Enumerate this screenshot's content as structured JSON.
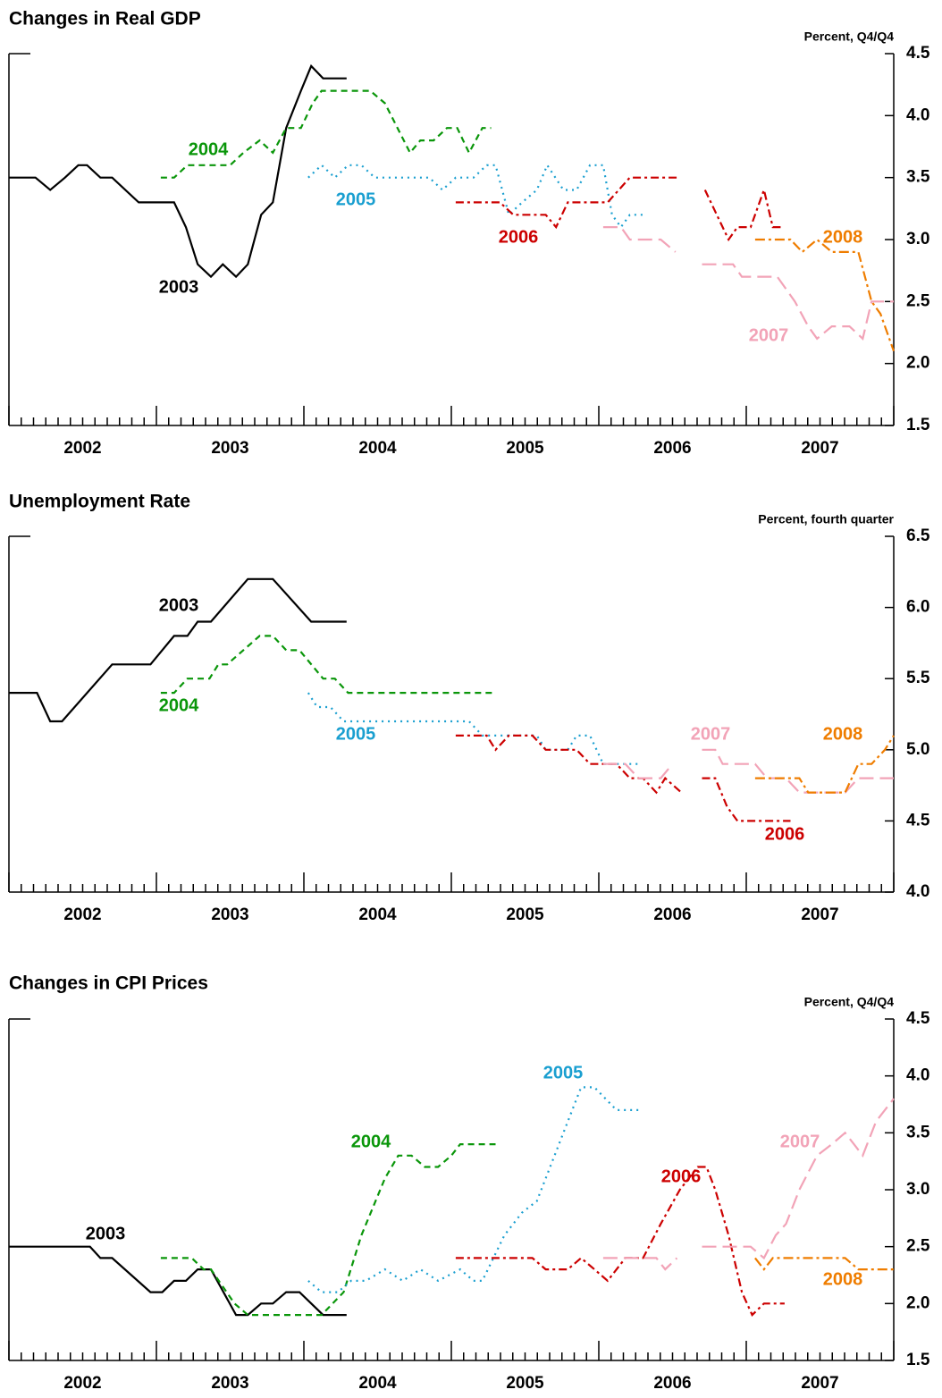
{
  "chart_data": [
    {
      "type": "line",
      "title": "Changes in Real GDP",
      "y_axis_label": "Percent, Q4/Q4",
      "xlim": [
        2002,
        2008
      ],
      "xticks": [
        {
          "value": 2002.5,
          "label": "2002"
        },
        {
          "value": 2003.5,
          "label": "2003"
        },
        {
          "value": 2004.5,
          "label": "2004"
        },
        {
          "value": 2005.5,
          "label": "2005"
        },
        {
          "value": 2006.5,
          "label": "2006"
        },
        {
          "value": 2007.5,
          "label": "2007"
        }
      ],
      "ylim": [
        1.5,
        4.5
      ],
      "yticks": [
        1.5,
        {
          "value": 2,
          "label": "2.0"
        },
        2.5,
        {
          "value": 3,
          "label": "3.0"
        },
        3.5,
        {
          "value": 4,
          "label": "4.0"
        },
        4.5
      ],
      "series": [
        {
          "name": "2003",
          "color": "#000000",
          "x": [
            2002.0,
            2002.18,
            2002.28,
            2002.38,
            2002.47,
            2002.53,
            2002.62,
            2002.7,
            2002.88,
            2003.12,
            2003.2,
            2003.28,
            2003.37,
            2003.45,
            2003.54,
            2003.62,
            2003.71,
            2003.79,
            2003.88,
            2003.98,
            2004.05,
            2004.13,
            2004.29
          ],
          "values": [
            3.5,
            3.5,
            3.4,
            3.5,
            3.6,
            3.6,
            3.5,
            3.5,
            3.3,
            3.3,
            3.1,
            2.8,
            2.7,
            2.8,
            2.7,
            2.8,
            3.2,
            3.3,
            3.9,
            4.2,
            4.4,
            4.3,
            4.3
          ]
        },
        {
          "name": "2004",
          "color": "#0a960a",
          "x": [
            2003.03,
            2003.12,
            2003.21,
            2003.5,
            2003.59,
            2003.7,
            2003.79,
            2003.88,
            2003.98,
            2004.06,
            2004.12,
            2004.45,
            2004.55,
            2004.72,
            2004.79,
            2004.88,
            2004.97,
            2005.04,
            2005.12,
            2005.21,
            2005.27
          ],
          "values": [
            3.5,
            3.5,
            3.6,
            3.6,
            3.7,
            3.8,
            3.7,
            3.9,
            3.9,
            4.1,
            4.2,
            4.2,
            4.1,
            3.7,
            3.8,
            3.8,
            3.9,
            3.9,
            3.7,
            3.9,
            3.9
          ]
        },
        {
          "name": "2005",
          "color": "#1a9fd0",
          "x": [
            2004.03,
            2004.12,
            2004.21,
            2004.3,
            2004.39,
            2004.48,
            2004.85,
            2004.94,
            2005.03,
            2005.15,
            2005.24,
            2005.3,
            2005.39,
            2005.48,
            2005.58,
            2005.65,
            2005.76,
            2005.85,
            2005.94,
            2006.03,
            2006.09,
            2006.15,
            2006.21,
            2006.3
          ],
          "values": [
            3.5,
            3.6,
            3.5,
            3.6,
            3.6,
            3.5,
            3.5,
            3.4,
            3.5,
            3.5,
            3.6,
            3.6,
            3.2,
            3.3,
            3.4,
            3.6,
            3.4,
            3.4,
            3.6,
            3.6,
            3.2,
            3.1,
            3.2,
            3.2
          ]
        },
        {
          "name": "2006",
          "color": "#cc0000",
          "x": [
            2005.03,
            2005.33,
            2005.42,
            2005.64,
            2005.71,
            2005.79,
            2006.06,
            2006.21,
            2006.55,
            2006.64,
            2006.72,
            2006.8,
            2006.88,
            2006.94,
            2007.03,
            2007.12,
            2007.18,
            2007.24
          ],
          "values": [
            3.3,
            3.3,
            3.2,
            3.2,
            3.1,
            3.3,
            3.3,
            3.5,
            3.5,
            null,
            3.4,
            3.2,
            3.0,
            3.1,
            3.1,
            3.4,
            3.1,
            3.1
          ]
        },
        {
          "name": "2007",
          "color": "#f2a3b7",
          "x": [
            2006.03,
            2006.15,
            2006.21,
            2006.42,
            2006.52,
            2006.6,
            2006.7,
            2006.91,
            2006.97,
            2007.21,
            2007.33,
            2007.42,
            2007.48,
            2007.58,
            2007.7,
            2007.79,
            2007.85,
            2008.0
          ],
          "values": [
            3.1,
            3.1,
            3.0,
            3.0,
            2.9,
            null,
            2.8,
            2.8,
            2.7,
            2.7,
            2.5,
            2.3,
            2.2,
            2.3,
            2.3,
            2.2,
            2.5,
            2.5
          ]
        },
        {
          "name": "2008",
          "color": "#ef7d00",
          "x": [
            2007.06,
            2007.3,
            2007.38,
            2007.48,
            2007.58,
            2007.76,
            2007.85,
            2007.91,
            2008.0
          ],
          "values": [
            3.0,
            3.0,
            2.9,
            3.0,
            2.9,
            2.9,
            2.5,
            2.4,
            2.1
          ]
        }
      ]
    },
    {
      "type": "line",
      "title": "Unemployment Rate",
      "y_axis_label": "Percent, fourth quarter",
      "xlim": [
        2002,
        2008
      ],
      "xticks": [
        {
          "value": 2002.5,
          "label": "2002"
        },
        {
          "value": 2003.5,
          "label": "2003"
        },
        {
          "value": 2004.5,
          "label": "2004"
        },
        {
          "value": 2005.5,
          "label": "2005"
        },
        {
          "value": 2006.5,
          "label": "2006"
        },
        {
          "value": 2007.5,
          "label": "2007"
        }
      ],
      "ylim": [
        4.0,
        6.5
      ],
      "yticks": [
        {
          "value": 4,
          "label": "4.0"
        },
        4.5,
        {
          "value": 5,
          "label": "5.0"
        },
        5.5,
        {
          "value": 6,
          "label": "6.0"
        },
        6.5
      ],
      "series": [
        {
          "name": "2003",
          "color": "#000000",
          "x": [
            2002.0,
            2002.19,
            2002.28,
            2002.36,
            2002.7,
            2002.96,
            2003.12,
            2003.21,
            2003.28,
            2003.37,
            2003.62,
            2003.79,
            2004.05,
            2004.29
          ],
          "values": [
            5.4,
            5.4,
            5.2,
            5.2,
            5.6,
            5.6,
            5.8,
            5.8,
            5.9,
            5.9,
            6.2,
            6.2,
            5.9,
            5.9
          ]
        },
        {
          "name": "2004",
          "color": "#0a960a",
          "x": [
            2003.03,
            2003.12,
            2003.21,
            2003.36,
            2003.42,
            2003.48,
            2003.7,
            2003.79,
            2003.88,
            2003.97,
            2004.13,
            2004.21,
            2004.3,
            2005.3
          ],
          "values": [
            5.4,
            5.4,
            5.5,
            5.5,
            5.6,
            5.6,
            5.8,
            5.8,
            5.7,
            5.7,
            5.5,
            5.5,
            5.4,
            5.4
          ]
        },
        {
          "name": "2005",
          "color": "#1a9fd0",
          "x": [
            2004.03,
            2004.09,
            2004.18,
            2004.27,
            2005.12,
            2005.21,
            2005.58,
            2005.64,
            2005.79,
            2005.85,
            2005.94,
            2006.03,
            2006.29
          ],
          "values": [
            5.4,
            5.3,
            5.3,
            5.2,
            5.2,
            5.1,
            5.1,
            5.0,
            5.0,
            5.1,
            5.1,
            4.9,
            4.9
          ]
        },
        {
          "name": "2006",
          "color": "#cc0000",
          "x": [
            2005.03,
            2005.24,
            2005.3,
            2005.39,
            2005.55,
            2005.64,
            2005.85,
            2005.94,
            2006.12,
            2006.21,
            2006.3,
            2006.39,
            2006.45,
            2006.56,
            2006.63,
            2006.7,
            2006.79,
            2006.87,
            2006.94,
            2007.3
          ],
          "values": [
            5.1,
            5.1,
            5.0,
            5.1,
            5.1,
            5.0,
            5.0,
            4.9,
            4.9,
            4.8,
            4.8,
            4.7,
            4.8,
            4.7,
            null,
            4.8,
            4.8,
            4.6,
            4.5,
            4.5
          ]
        },
        {
          "name": "2007",
          "color": "#f2a3b7",
          "x": [
            2006.03,
            2006.18,
            2006.27,
            2006.42,
            2006.5,
            2006.6,
            2006.7,
            2006.79,
            2006.84,
            2007.06,
            2007.14,
            2007.27,
            2007.36,
            2007.67,
            2007.76,
            2008.0
          ],
          "values": [
            4.9,
            4.9,
            4.8,
            4.8,
            4.9,
            null,
            5.0,
            5.0,
            4.9,
            4.9,
            4.8,
            4.8,
            4.7,
            4.7,
            4.8,
            4.8
          ]
        },
        {
          "name": "2008",
          "color": "#ef7d00",
          "x": [
            2007.06,
            2007.36,
            2007.42,
            2007.67,
            2007.76,
            2007.85,
            2007.94,
            2008.0
          ],
          "values": [
            4.8,
            4.8,
            4.7,
            4.7,
            4.9,
            4.9,
            5.0,
            5.1
          ]
        }
      ]
    },
    {
      "type": "line",
      "title": "Changes in CPI Prices",
      "y_axis_label": "Percent, Q4/Q4",
      "xlim": [
        2002,
        2008
      ],
      "xticks": [
        {
          "value": 2002.5,
          "label": "2002"
        },
        {
          "value": 2003.5,
          "label": "2003"
        },
        {
          "value": 2004.5,
          "label": "2004"
        },
        {
          "value": 2005.5,
          "label": "2005"
        },
        {
          "value": 2006.5,
          "label": "2006"
        },
        {
          "value": 2007.5,
          "label": "2007"
        }
      ],
      "ylim": [
        1.5,
        4.5
      ],
      "yticks": [
        1.5,
        {
          "value": 2,
          "label": "2.0"
        },
        2.5,
        {
          "value": 3,
          "label": "3.0"
        },
        3.5,
        {
          "value": 4,
          "label": "4.0"
        },
        4.5
      ],
      "series": [
        {
          "name": "2003",
          "color": "#000000",
          "x": [
            2002.0,
            2002.55,
            2002.62,
            2002.7,
            2002.96,
            2003.04,
            2003.12,
            2003.2,
            2003.28,
            2003.37,
            2003.54,
            2003.62,
            2003.71,
            2003.79,
            2003.88,
            2003.97,
            2004.13,
            2004.29
          ],
          "values": [
            2.5,
            2.5,
            2.4,
            2.4,
            2.1,
            2.1,
            2.2,
            2.2,
            2.3,
            2.3,
            1.9,
            1.9,
            2.0,
            2.0,
            2.1,
            2.1,
            1.9,
            1.9
          ]
        },
        {
          "name": "2004",
          "color": "#0a960a",
          "x": [
            2003.03,
            2003.24,
            2003.32,
            2003.37,
            2003.53,
            2003.62,
            2004.12,
            2004.27,
            2004.39,
            2004.55,
            2004.64,
            2004.73,
            2004.82,
            2004.91,
            2005.0,
            2005.06,
            2005.3
          ],
          "values": [
            2.4,
            2.4,
            2.3,
            2.3,
            2.0,
            1.9,
            1.9,
            2.1,
            2.6,
            3.1,
            3.3,
            3.3,
            3.2,
            3.2,
            3.3,
            3.4,
            3.4
          ]
        },
        {
          "name": "2005",
          "color": "#1a9fd0",
          "x": [
            2004.03,
            2004.12,
            2004.23,
            2004.32,
            2004.42,
            2004.55,
            2004.67,
            2004.79,
            2004.91,
            2005.06,
            2005.15,
            2005.21,
            2005.36,
            2005.48,
            2005.58,
            2005.76,
            2005.88,
            2005.97,
            2006.12,
            2006.27
          ],
          "values": [
            2.2,
            2.1,
            2.1,
            2.2,
            2.2,
            2.3,
            2.2,
            2.3,
            2.2,
            2.3,
            2.2,
            2.2,
            2.6,
            2.8,
            2.9,
            3.5,
            3.9,
            3.9,
            3.7,
            3.7
          ]
        },
        {
          "name": "2006",
          "color": "#cc0000",
          "x": [
            2005.03,
            2005.55,
            2005.64,
            2005.79,
            2005.88,
            2005.97,
            2006.06,
            2006.18,
            2006.3,
            2006.42,
            2006.55,
            2006.67,
            2006.73,
            2006.79,
            2006.88,
            2006.97,
            2007.04,
            2007.12,
            2007.26
          ],
          "values": [
            2.4,
            2.4,
            2.3,
            2.3,
            2.4,
            2.3,
            2.2,
            2.4,
            2.4,
            2.7,
            3.0,
            3.2,
            3.2,
            3.0,
            2.6,
            2.1,
            1.9,
            2.0,
            2.0
          ]
        },
        {
          "name": "2007",
          "color": "#f2a3b7",
          "x": [
            2006.03,
            2006.39,
            2006.45,
            2006.53,
            2006.6,
            2006.7,
            2007.03,
            2007.12,
            2007.2,
            2007.27,
            2007.36,
            2007.48,
            2007.58,
            2007.67,
            2007.73,
            2007.79,
            2007.88,
            2008.0
          ],
          "values": [
            2.4,
            2.4,
            2.3,
            2.4,
            null,
            2.5,
            2.5,
            2.4,
            2.6,
            2.7,
            3.0,
            3.3,
            3.4,
            3.5,
            3.4,
            3.3,
            3.6,
            3.8
          ]
        },
        {
          "name": "2008",
          "color": "#ef7d00",
          "x": [
            2007.06,
            2007.12,
            2007.18,
            2007.67,
            2007.76,
            2008.0
          ],
          "values": [
            2.4,
            2.3,
            2.4,
            2.4,
            2.3,
            2.3
          ]
        }
      ]
    }
  ]
}
